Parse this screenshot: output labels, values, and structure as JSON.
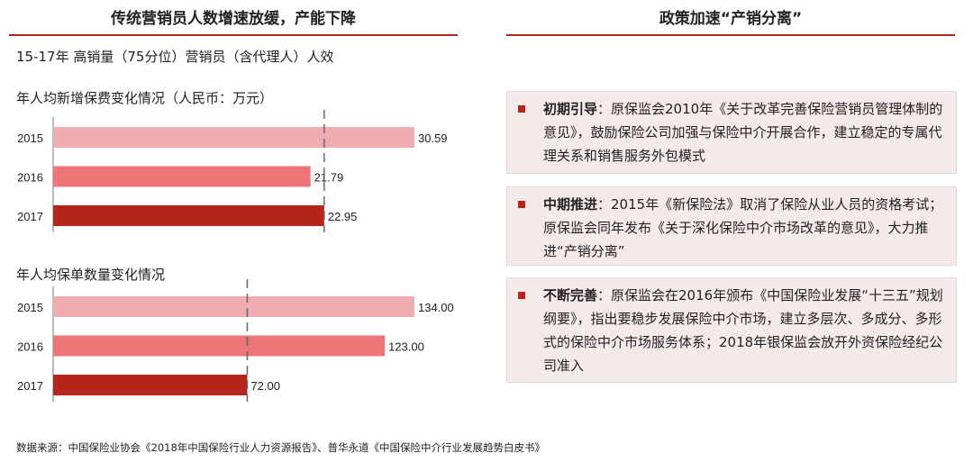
{
  "left_title": "传统营销员人数增速放缓，产能下降",
  "right_title": "政策加速“产销分离”",
  "left_subtitle": "15-17年 高销量（75分位）营销员（含代理人）人效",
  "colors": {
    "accent": "#b5251b",
    "bar_2015": "#f0adb1",
    "bar_2016": "#ee7478",
    "bar_2017": "#b5251b",
    "box_bg": "#f5e9ea"
  },
  "chart_data": [
    {
      "type": "bar",
      "orientation": "horizontal",
      "title": "年人均新增保费变化情况（人民币：万元）",
      "categories": [
        "2015",
        "2016",
        "2017"
      ],
      "values": [
        30.59,
        21.79,
        22.95
      ],
      "labels": [
        "30.59",
        "21.79",
        "22.95"
      ],
      "reference_line": 22.95,
      "xlim": [
        0,
        30.59
      ]
    },
    {
      "type": "bar",
      "orientation": "horizontal",
      "title": "年人均保单数量变化情况",
      "categories": [
        "2015",
        "2016",
        "2017"
      ],
      "values": [
        134.0,
        123.0,
        72.0
      ],
      "labels": [
        "134.00",
        "123.00",
        "72.00"
      ],
      "reference_line": 72.0,
      "xlim": [
        0,
        134
      ]
    }
  ],
  "policies": [
    {
      "head": "初期引导",
      "text": "：原保监会2010年《关于改革完善保险营销员管理体制的意见》，鼓励保险公司加强与保险中介开展合作，建立稳定的专属代理关系和销售服务外包模式"
    },
    {
      "head": "中期推进",
      "text": "：2015年《新保险法》取消了保险从业人员的资格考试；原保监会同年发布《关于深化保险中介市场改革的意见》，大力推进“产销分离”"
    },
    {
      "head": "不断完善",
      "text": "：原保监会在2016年颁布《中国保险业发展“十三五”规划纲要》，指出要稳步发展保险中介市场，建立多层次、多成分、多形式的保险中介市场服务体系；2018年银保监会放开外资保险经纪公司准入"
    }
  ],
  "footer": "数据来源：中国保险业协会《2018年中国保险行业人力资源报告》、普华永道《中国保险中介行业发展趋势白皮书》"
}
